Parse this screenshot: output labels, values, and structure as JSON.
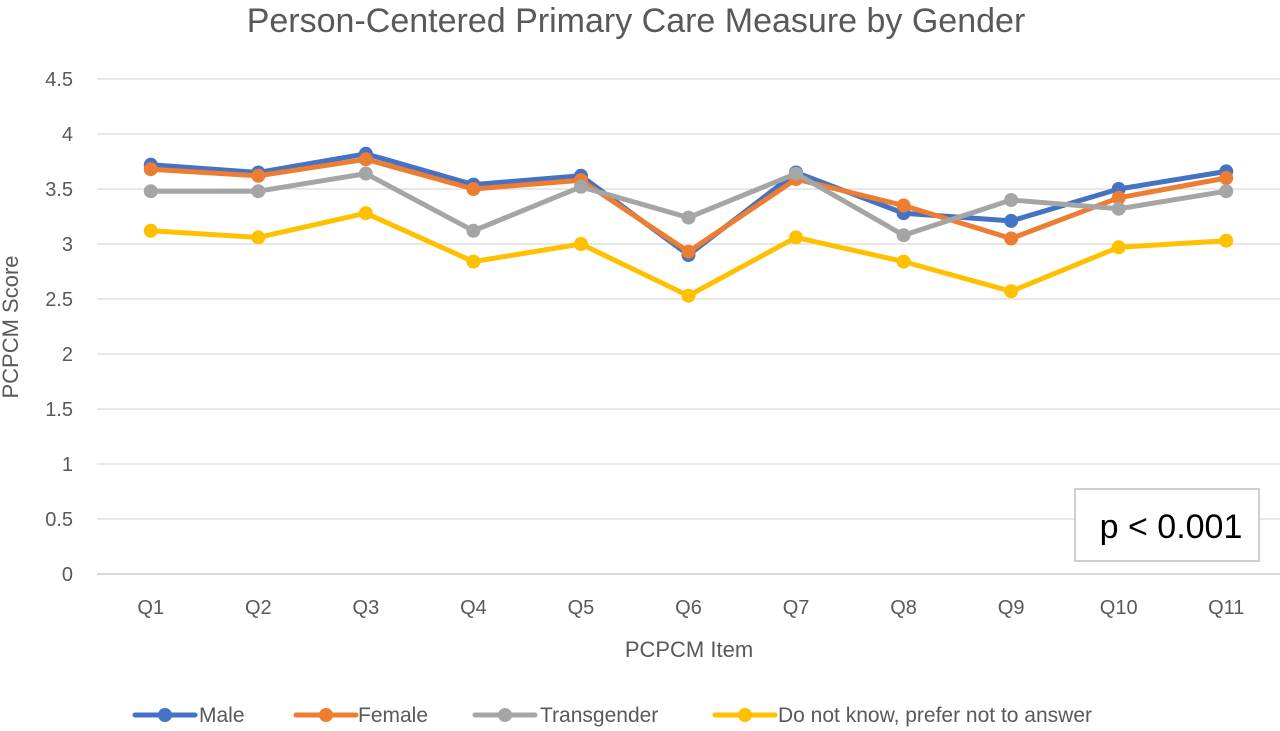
{
  "chart_data": {
    "type": "line",
    "title": "Person-Centered Primary Care Measure by Gender",
    "xlabel": "PCPCM Item",
    "ylabel": "PCPCM Score",
    "categories": [
      "Q1",
      "Q2",
      "Q3",
      "Q4",
      "Q5",
      "Q6",
      "Q7",
      "Q8",
      "Q9",
      "Q10",
      "Q11"
    ],
    "ylim": [
      0,
      4.5
    ],
    "yticks": [
      "0",
      "0.5",
      "1",
      "1.5",
      "2",
      "2.5",
      "3",
      "3.5",
      "4",
      "4.5"
    ],
    "grid": true,
    "legend_position": "bottom",
    "series": [
      {
        "name": "Male",
        "color": "#4472C4",
        "values": [
          3.72,
          3.65,
          3.82,
          3.54,
          3.62,
          2.9,
          3.65,
          3.28,
          3.21,
          3.5,
          3.66
        ]
      },
      {
        "name": "Female",
        "color": "#ED7D31",
        "values": [
          3.68,
          3.62,
          3.77,
          3.5,
          3.58,
          2.93,
          3.59,
          3.35,
          3.05,
          3.42,
          3.6
        ]
      },
      {
        "name": "Transgender",
        "color": "#A5A5A5",
        "values": [
          3.48,
          3.48,
          3.64,
          3.12,
          3.52,
          3.24,
          3.64,
          3.08,
          3.4,
          3.32,
          3.48
        ]
      },
      {
        "name": "Do not know, prefer not to answer",
        "color": "#FFC000",
        "values": [
          3.12,
          3.06,
          3.28,
          2.84,
          3.0,
          2.53,
          3.06,
          2.84,
          2.57,
          2.97,
          3.03
        ]
      }
    ],
    "annotation": "p < 0.001"
  }
}
